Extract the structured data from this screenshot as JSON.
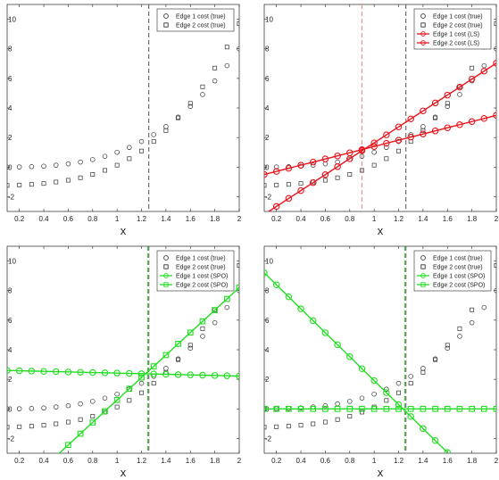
{
  "chart_data": [
    {
      "type": "scatter",
      "xlabel": "x",
      "xlim": [
        0.1,
        2.0
      ],
      "ylim": [
        -3,
        11
      ],
      "xticks": [
        "0.2",
        "0.4",
        "0.6",
        "0.8",
        "1",
        "1.2",
        "1.4",
        "1.6",
        "1.8",
        "2"
      ],
      "yticks": [
        "-2",
        "0",
        "2",
        "4",
        "6",
        "8",
        "10"
      ],
      "vlines": [
        {
          "x": 1.26,
          "color": "#555555"
        }
      ],
      "series": [
        {
          "name": "Edge 1 cost (true)",
          "marker": "circle",
          "color": "#333333",
          "x": [
            0.1,
            0.2,
            0.3,
            0.4,
            0.5,
            0.6,
            0.7,
            0.8,
            0.9,
            1.0,
            1.1,
            1.2,
            1.3,
            1.4,
            1.5,
            1.6,
            1.7,
            1.8,
            1.9,
            2.0
          ],
          "y": [
            0.0,
            0.01,
            0.03,
            0.06,
            0.13,
            0.22,
            0.34,
            0.51,
            0.73,
            1.0,
            1.33,
            1.73,
            2.2,
            2.74,
            3.38,
            4.1,
            4.91,
            5.83,
            6.86,
            8.0
          ]
        },
        {
          "name": "Edge 2 cost (true)",
          "marker": "square",
          "color": "#333333",
          "x": [
            0.1,
            0.2,
            0.3,
            0.4,
            0.5,
            0.6,
            0.7,
            0.8,
            0.9,
            1.0,
            1.1,
            1.2,
            1.3,
            1.4,
            1.5,
            1.6,
            1.7,
            1.8,
            1.9,
            2.0
          ],
          "y": [
            -1.24,
            -1.21,
            -1.17,
            -1.11,
            -1.01,
            -0.89,
            -0.72,
            -0.5,
            -0.22,
            0.13,
            0.57,
            1.09,
            1.73,
            2.47,
            3.33,
            4.31,
            5.43,
            6.7,
            8.12,
            9.7
          ]
        }
      ]
    },
    {
      "type": "scatter",
      "xlabel": "x",
      "xlim": [
        0.1,
        2.0
      ],
      "ylim": [
        -3,
        11
      ],
      "xticks": [
        "0.2",
        "0.4",
        "0.6",
        "0.8",
        "1",
        "1.2",
        "1.4",
        "1.6",
        "1.8",
        "2"
      ],
      "yticks": [
        "-2",
        "0",
        "2",
        "4",
        "6",
        "8",
        "10"
      ],
      "vlines": [
        {
          "x": 1.26,
          "color": "#555555"
        },
        {
          "x": 0.9,
          "color": "#f08a7a"
        }
      ],
      "series": [
        {
          "name": "Edge 1 cost (true)",
          "marker": "circle",
          "color": "#333333",
          "x": [
            0.1,
            0.2,
            0.3,
            0.4,
            0.5,
            0.6,
            0.7,
            0.8,
            0.9,
            1.0,
            1.1,
            1.2,
            1.3,
            1.4,
            1.5,
            1.6,
            1.7,
            1.8,
            1.9,
            2.0
          ],
          "y": [
            0.0,
            0.01,
            0.03,
            0.06,
            0.13,
            0.22,
            0.34,
            0.51,
            0.73,
            1.0,
            1.33,
            1.73,
            2.2,
            2.74,
            3.38,
            4.1,
            4.91,
            5.83,
            6.86,
            8.0
          ]
        },
        {
          "name": "Edge 2 cost (true)",
          "marker": "square",
          "color": "#333333",
          "x": [
            0.1,
            0.2,
            0.3,
            0.4,
            0.5,
            0.6,
            0.7,
            0.8,
            0.9,
            1.0,
            1.1,
            1.2,
            1.3,
            1.4,
            1.5,
            1.6,
            1.7,
            1.8,
            1.9,
            2.0
          ],
          "y": [
            -1.24,
            -1.21,
            -1.17,
            -1.11,
            -1.01,
            -0.89,
            -0.72,
            -0.5,
            -0.22,
            0.13,
            0.57,
            1.09,
            1.73,
            2.47,
            3.33,
            4.31,
            5.43,
            6.7,
            8.12,
            9.7
          ]
        },
        {
          "name": "Edge 1 cost (LS)",
          "marker": "circle",
          "color": "#e8141c",
          "line": true,
          "x": [
            0.1,
            0.2,
            0.3,
            0.4,
            0.5,
            0.6,
            0.7,
            0.8,
            0.9,
            1.0,
            1.1,
            1.2,
            1.3,
            1.4,
            1.5,
            1.6,
            1.7,
            1.8,
            1.9,
            2.0
          ],
          "y": [
            -0.5,
            -0.29,
            -0.08,
            0.13,
            0.34,
            0.55,
            0.76,
            0.97,
            1.18,
            1.39,
            1.61,
            1.82,
            2.03,
            2.24,
            2.45,
            2.66,
            2.87,
            3.08,
            3.29,
            3.5
          ]
        },
        {
          "name": "Edge 2 cost (LS)",
          "marker": "circle",
          "color": "#e8141c",
          "line": true,
          "x": [
            0.1,
            0.2,
            0.3,
            0.4,
            0.5,
            0.6,
            0.7,
            0.8,
            0.9,
            1.0,
            1.1,
            1.2,
            1.3,
            1.4,
            1.5,
            1.6,
            1.7,
            1.8,
            1.9,
            2.0
          ],
          "y": [
            -3.2,
            -2.66,
            -2.12,
            -1.59,
            -1.05,
            -0.51,
            0.03,
            0.57,
            1.11,
            1.64,
            2.18,
            2.72,
            3.26,
            3.8,
            4.34,
            4.87,
            5.41,
            5.95,
            6.49,
            7.03
          ]
        }
      ]
    },
    {
      "type": "scatter",
      "xlabel": "x",
      "xlim": [
        0.1,
        2.0
      ],
      "ylim": [
        -3,
        11
      ],
      "xticks": [
        "0.2",
        "0.4",
        "0.6",
        "0.8",
        "1",
        "1.2",
        "1.4",
        "1.6",
        "1.8",
        "2"
      ],
      "yticks": [
        "-2",
        "0",
        "2",
        "4",
        "6",
        "8",
        "10"
      ],
      "vlines": [
        {
          "x": 1.26,
          "color": "#555555"
        },
        {
          "x": 1.25,
          "color": "#2bbf2b"
        }
      ],
      "series": [
        {
          "name": "Edge 1 cost (true)",
          "marker": "circle",
          "color": "#333333",
          "x": [
            0.1,
            0.2,
            0.3,
            0.4,
            0.5,
            0.6,
            0.7,
            0.8,
            0.9,
            1.0,
            1.1,
            1.2,
            1.3,
            1.4,
            1.5,
            1.6,
            1.7,
            1.8,
            1.9,
            2.0
          ],
          "y": [
            0.0,
            0.01,
            0.03,
            0.06,
            0.13,
            0.22,
            0.34,
            0.51,
            0.73,
            1.0,
            1.33,
            1.73,
            2.2,
            2.74,
            3.38,
            4.1,
            4.91,
            5.83,
            6.86,
            8.0
          ]
        },
        {
          "name": "Edge 2 cost (true)",
          "marker": "square",
          "color": "#333333",
          "x": [
            0.1,
            0.2,
            0.3,
            0.4,
            0.5,
            0.6,
            0.7,
            0.8,
            0.9,
            1.0,
            1.1,
            1.2,
            1.3,
            1.4,
            1.5,
            1.6,
            1.7,
            1.8,
            1.9,
            2.0
          ],
          "y": [
            -1.24,
            -1.21,
            -1.17,
            -1.11,
            -1.01,
            -0.89,
            -0.72,
            -0.5,
            -0.22,
            0.13,
            0.57,
            1.09,
            1.73,
            2.47,
            3.33,
            4.31,
            5.43,
            6.7,
            8.12,
            9.7
          ]
        },
        {
          "name": "Edge 1 cost (SPO)",
          "marker": "circle",
          "color": "#22dd22",
          "line": true,
          "x": [
            0.1,
            0.2,
            0.3,
            0.4,
            0.5,
            0.6,
            0.7,
            0.8,
            0.9,
            1.0,
            1.1,
            1.2,
            1.3,
            1.4,
            1.5,
            1.6,
            1.7,
            1.8,
            1.9,
            2.0
          ],
          "y": [
            2.6,
            2.58,
            2.56,
            2.54,
            2.52,
            2.5,
            2.48,
            2.46,
            2.44,
            2.42,
            2.4,
            2.38,
            2.36,
            2.34,
            2.32,
            2.3,
            2.28,
            2.26,
            2.24,
            2.22
          ]
        },
        {
          "name": "Edge 2 cost (SPO)",
          "marker": "square",
          "color": "#22dd22",
          "line": true,
          "x": [
            0.5,
            0.6,
            0.7,
            0.8,
            0.9,
            1.0,
            1.1,
            1.2,
            1.3,
            1.4,
            1.5,
            1.6,
            1.7,
            1.8,
            1.9,
            2.0
          ],
          "y": [
            -3.2,
            -2.44,
            -1.68,
            -0.92,
            -0.16,
            0.6,
            1.36,
            2.12,
            2.88,
            3.64,
            4.4,
            5.16,
            5.92,
            6.68,
            7.44,
            8.2
          ]
        }
      ]
    },
    {
      "type": "scatter",
      "xlabel": "x",
      "xlim": [
        0.1,
        2.0
      ],
      "ylim": [
        -3,
        11
      ],
      "xticks": [
        "0.2",
        "0.4",
        "0.6",
        "0.8",
        "1",
        "1.2",
        "1.4",
        "1.6",
        "1.8",
        "2"
      ],
      "yticks": [
        "-2",
        "0",
        "2",
        "4",
        "6",
        "8",
        "10"
      ],
      "vlines": [
        {
          "x": 1.26,
          "color": "#555555"
        },
        {
          "x": 1.25,
          "color": "#2bbf2b"
        }
      ],
      "series": [
        {
          "name": "Edge 1 cost (true)",
          "marker": "circle",
          "color": "#333333",
          "x": [
            0.1,
            0.2,
            0.3,
            0.4,
            0.5,
            0.6,
            0.7,
            0.8,
            0.9,
            1.0,
            1.1,
            1.2,
            1.3,
            1.4,
            1.5,
            1.6,
            1.7,
            1.8,
            1.9,
            2.0
          ],
          "y": [
            0.0,
            0.01,
            0.03,
            0.06,
            0.13,
            0.22,
            0.34,
            0.51,
            0.73,
            1.0,
            1.33,
            1.73,
            2.2,
            2.74,
            3.38,
            4.1,
            4.91,
            5.83,
            6.86,
            8.0
          ]
        },
        {
          "name": "Edge 2 cost (true)",
          "marker": "square",
          "color": "#333333",
          "x": [
            0.1,
            0.2,
            0.3,
            0.4,
            0.5,
            0.6,
            0.7,
            0.8,
            0.9,
            1.0,
            1.1,
            1.2,
            1.3,
            1.4,
            1.5,
            1.6,
            1.7,
            1.8,
            1.9,
            2.0
          ],
          "y": [
            -1.24,
            -1.21,
            -1.17,
            -1.11,
            -1.01,
            -0.89,
            -0.72,
            -0.5,
            -0.22,
            0.13,
            0.57,
            1.09,
            1.73,
            2.47,
            3.33,
            4.31,
            5.43,
            6.7,
            8.12,
            9.7
          ]
        },
        {
          "name": "Edge 1 cost (SPO)",
          "marker": "circle",
          "color": "#22dd22",
          "line": true,
          "x": [
            0.1,
            0.2,
            0.3,
            0.4,
            0.5,
            0.6,
            0.7,
            0.8,
            0.9,
            1.0,
            1.1,
            1.2,
            1.3,
            1.4,
            1.5,
            1.6
          ],
          "y": [
            9.2,
            8.39,
            7.58,
            6.77,
            5.96,
            5.15,
            4.34,
            3.53,
            2.72,
            1.91,
            1.1,
            0.29,
            -0.52,
            -1.33,
            -2.14,
            -2.95
          ]
        },
        {
          "name": "Edge 2 cost (SPO)",
          "marker": "square",
          "color": "#22dd22",
          "line": true,
          "x": [
            0.1,
            0.2,
            0.3,
            0.4,
            0.5,
            0.6,
            0.7,
            0.8,
            0.9,
            1.0,
            1.1,
            1.2,
            1.3,
            1.4,
            1.5,
            1.6,
            1.7,
            1.8,
            1.9,
            2.0
          ],
          "y": [
            0,
            0,
            0,
            0,
            0,
            0,
            0,
            0,
            0,
            0,
            0,
            0,
            0,
            0,
            0,
            0,
            0,
            0,
            0,
            0
          ]
        }
      ]
    }
  ]
}
